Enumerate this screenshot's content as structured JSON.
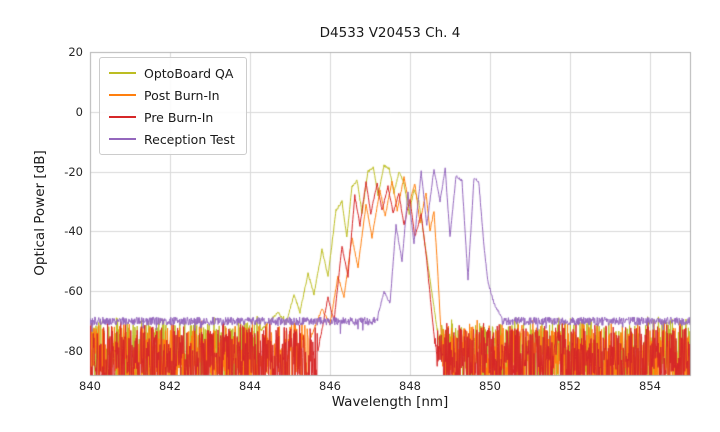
{
  "figure": {
    "title": "D4533 V20453 Ch. 4",
    "xlabel": "Wavelength [nm]",
    "ylabel": "Optical Power [dB]"
  },
  "chart_data": {
    "type": "line",
    "title": "D4533 V20453 Ch. 4",
    "xlabel": "Wavelength [nm]",
    "ylabel": "Optical Power [dB]",
    "xlim": [
      840,
      855
    ],
    "ylim": [
      -88,
      20
    ],
    "xticks": [
      840,
      842,
      844,
      846,
      848,
      850,
      852,
      854
    ],
    "yticks": [
      20,
      0,
      -20,
      -40,
      -60,
      -80
    ],
    "grid": true,
    "legend_position": "upper left",
    "grid_color": "#d9d9d9",
    "spine_color": "#b0b0b0",
    "series": [
      {
        "name": "OptoBoard QA",
        "color": "#bcbd22",
        "noise": {
          "kind": "spiky",
          "top": -69.5,
          "depth": 23,
          "seed": 11
        },
        "envelope": [
          [
            844.2,
            -74
          ],
          [
            844.5,
            -70
          ],
          [
            844.7,
            -67
          ],
          [
            844.9,
            -71
          ],
          [
            845.1,
            -61
          ],
          [
            845.25,
            -67
          ],
          [
            845.45,
            -54
          ],
          [
            845.6,
            -61
          ],
          [
            845.8,
            -46
          ],
          [
            845.95,
            -55
          ],
          [
            846.15,
            -33
          ],
          [
            846.3,
            -30
          ],
          [
            846.42,
            -42
          ],
          [
            846.55,
            -25
          ],
          [
            846.68,
            -23
          ],
          [
            846.8,
            -34
          ],
          [
            846.95,
            -20
          ],
          [
            847.08,
            -18.5
          ],
          [
            847.2,
            -28
          ],
          [
            847.35,
            -18
          ],
          [
            847.48,
            -19
          ],
          [
            847.6,
            -27
          ],
          [
            847.73,
            -20
          ],
          [
            847.85,
            -24
          ],
          [
            847.98,
            -34
          ],
          [
            848.1,
            -26
          ],
          [
            848.22,
            -30
          ],
          [
            848.35,
            -42
          ],
          [
            848.5,
            -56
          ],
          [
            848.65,
            -70
          ],
          [
            848.8,
            -85
          ]
        ]
      },
      {
        "name": "Post Burn-In",
        "color": "#ff7f0e",
        "noise": {
          "kind": "spiky",
          "top": -71,
          "depth": 22,
          "seed": 22
        },
        "envelope": [
          [
            845.5,
            -76
          ],
          [
            845.8,
            -66
          ],
          [
            846.0,
            -71
          ],
          [
            846.2,
            -55
          ],
          [
            846.35,
            -62
          ],
          [
            846.55,
            -42
          ],
          [
            846.7,
            -52
          ],
          [
            846.9,
            -31
          ],
          [
            847.05,
            -42
          ],
          [
            847.25,
            -26
          ],
          [
            847.38,
            -35
          ],
          [
            847.55,
            -23
          ],
          [
            847.68,
            -33
          ],
          [
            847.85,
            -22
          ],
          [
            847.98,
            -31
          ],
          [
            848.12,
            -24
          ],
          [
            848.25,
            -37
          ],
          [
            848.4,
            -27
          ],
          [
            848.5,
            -40
          ],
          [
            848.6,
            -33
          ],
          [
            848.7,
            -55
          ],
          [
            848.82,
            -85
          ]
        ]
      },
      {
        "name": "Pre Burn-In",
        "color": "#d62728",
        "noise": {
          "kind": "spiky",
          "top": -71.5,
          "depth": 22,
          "seed": 33
        },
        "envelope": [
          [
            845.7,
            -80
          ],
          [
            845.95,
            -62
          ],
          [
            846.1,
            -70
          ],
          [
            846.3,
            -45
          ],
          [
            846.45,
            -55
          ],
          [
            846.62,
            -28
          ],
          [
            846.75,
            -38
          ],
          [
            846.9,
            -23.5
          ],
          [
            847.02,
            -34
          ],
          [
            847.18,
            -24
          ],
          [
            847.3,
            -33
          ],
          [
            847.45,
            -25
          ],
          [
            847.58,
            -34
          ],
          [
            847.72,
            -27
          ],
          [
            847.85,
            -38
          ],
          [
            848.0,
            -29
          ],
          [
            848.12,
            -42
          ],
          [
            848.28,
            -34
          ],
          [
            848.42,
            -50
          ],
          [
            848.55,
            -68
          ],
          [
            848.68,
            -85
          ]
        ]
      },
      {
        "name": "Reception Test",
        "color": "#9467bd",
        "noise": {
          "kind": "flat",
          "top": -70,
          "jitter": 1.4,
          "seed": 44
        },
        "envelope": [
          [
            847.2,
            -68
          ],
          [
            847.35,
            -60
          ],
          [
            847.5,
            -64
          ],
          [
            847.65,
            -38
          ],
          [
            847.8,
            -50
          ],
          [
            847.95,
            -27
          ],
          [
            848.1,
            -44
          ],
          [
            848.28,
            -20
          ],
          [
            848.42,
            -38
          ],
          [
            848.6,
            -19
          ],
          [
            848.75,
            -30
          ],
          [
            848.88,
            -19
          ],
          [
            849.0,
            -42
          ],
          [
            849.15,
            -21.5
          ],
          [
            849.3,
            -23
          ],
          [
            849.45,
            -56
          ],
          [
            849.6,
            -22
          ],
          [
            849.72,
            -23.5
          ],
          [
            849.85,
            -45
          ],
          [
            849.95,
            -57
          ],
          [
            850.1,
            -64
          ],
          [
            850.3,
            -69
          ]
        ]
      }
    ]
  }
}
